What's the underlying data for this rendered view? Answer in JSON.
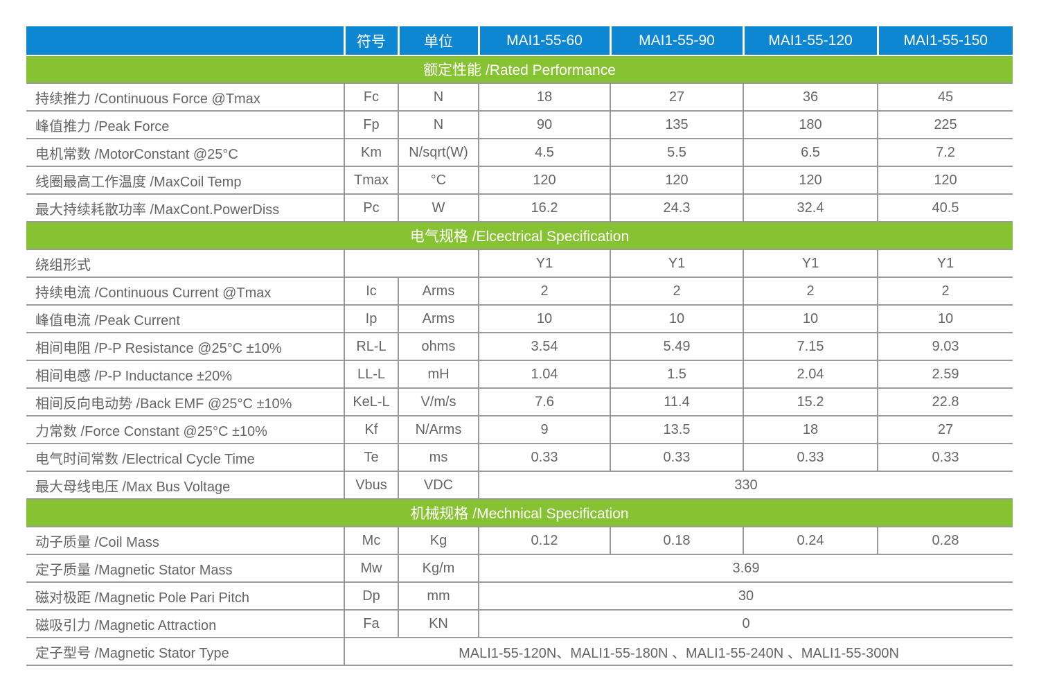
{
  "colors": {
    "header_blue": "#0d87d1",
    "section_green": "#87c232",
    "body_text": "#656565",
    "border_gray": "#9a9a9a",
    "band_text": "#ffffff"
  },
  "table": {
    "header": {
      "col_label": "",
      "col_symbol": "符号",
      "col_unit": "单位",
      "models": [
        "MAI1-55-60",
        "MAI1-55-90",
        "MAI1-55-120",
        "MAI1-55-150"
      ]
    },
    "rows": [
      {
        "type": "section",
        "label": "额定性能 /Rated Performance"
      },
      {
        "type": "data",
        "label": "持续推力 /Continuous Force @Tmax",
        "symbol": "Fc",
        "unit": "N",
        "values": [
          "18",
          "27",
          "36",
          "45"
        ]
      },
      {
        "type": "data",
        "label": "峰值推力 /Peak Force",
        "symbol": "Fp",
        "unit": "N",
        "values": [
          "90",
          "135",
          "180",
          "225"
        ]
      },
      {
        "type": "data",
        "label": "电机常数 /MotorConstant @25°C",
        "symbol": "Km",
        "unit": "N/sqrt(W)",
        "values": [
          "4.5",
          "5.5",
          "6.5",
          "7.2"
        ]
      },
      {
        "type": "data",
        "label": "线圈最高工作温度 /MaxCoil Temp",
        "symbol": "Tmax",
        "unit": "°C",
        "values": [
          "120",
          "120",
          "120",
          "120"
        ]
      },
      {
        "type": "data",
        "label": "最大持续耗散功率 /MaxCont.PowerDiss",
        "symbol": "Pc",
        "unit": "W",
        "values": [
          "16.2",
          "24.3",
          "32.4",
          "40.5"
        ]
      },
      {
        "type": "section",
        "label": "电气规格 /Elcectrical Specification"
      },
      {
        "type": "data-merged-symunit",
        "label": "绕组形式",
        "values": [
          "Y1",
          "Y1",
          "Y1",
          "Y1"
        ]
      },
      {
        "type": "data",
        "label": "持续电流 /Continuous Current @Tmax",
        "symbol": "Ic",
        "unit": "Arms",
        "values": [
          "2",
          "2",
          "2",
          "2"
        ]
      },
      {
        "type": "data",
        "label": "峰值电流 /Peak Current",
        "symbol": "Ip",
        "unit": "Arms",
        "values": [
          "10",
          "10",
          "10",
          "10"
        ]
      },
      {
        "type": "data",
        "label": "相间电阻 /P-P Resistance @25°C ±10%",
        "symbol": "RL-L",
        "unit": "ohms",
        "values": [
          "3.54",
          "5.49",
          "7.15",
          "9.03"
        ]
      },
      {
        "type": "data",
        "label": "相间电感 /P-P Inductance ±20%",
        "symbol": "LL-L",
        "unit": "mH",
        "values": [
          "1.04",
          "1.5",
          "2.04",
          "2.59"
        ]
      },
      {
        "type": "data",
        "label": "相间反向电动势 /Back EMF @25°C ±10%",
        "symbol": "KeL-L",
        "unit": "V/m/s",
        "values": [
          "7.6",
          "11.4",
          "15.2",
          "22.8"
        ]
      },
      {
        "type": "data",
        "label": "力常数 /Force Constant @25°C ±10%",
        "symbol": "Kf",
        "unit": "N/Arms",
        "values": [
          "9",
          "13.5",
          "18",
          "27"
        ]
      },
      {
        "type": "data",
        "label": "电气时间常数 /Electrical Cycle Time",
        "symbol": "Te",
        "unit": "ms",
        "values": [
          "0.33",
          "0.33",
          "0.33",
          "0.33"
        ]
      },
      {
        "type": "data-span",
        "label": "最大母线电压 /Max Bus Voltage",
        "symbol": "Vbus",
        "unit": "VDC",
        "span_value": "330"
      },
      {
        "type": "section",
        "label": "机械规格 /Mechnical Specification"
      },
      {
        "type": "data",
        "label": "动子质量 /Coil Mass",
        "symbol": "Mc",
        "unit": "Kg",
        "values": [
          "0.12",
          "0.18",
          "0.24",
          "0.28"
        ]
      },
      {
        "type": "data-span",
        "label": "定子质量 /Magnetic Stator Mass",
        "symbol": "Mw",
        "unit": "Kg/m",
        "span_value": "3.69"
      },
      {
        "type": "data-span",
        "label": "磁对极距 /Magnetic Pole Pari Pitch",
        "symbol": "Dp",
        "unit": "mm",
        "span_value": "30"
      },
      {
        "type": "data-span",
        "label": "磁吸引力 /Magnetic Attraction",
        "symbol": "Fa",
        "unit": "KN",
        "span_value": "0"
      },
      {
        "type": "data-fullspan",
        "label": "定子型号 /Magnetic Stator Type",
        "span_value": "MALI1-55-120N、MALI1-55-180N 、MALI1-55-240N 、MALI1-55-300N"
      }
    ]
  }
}
